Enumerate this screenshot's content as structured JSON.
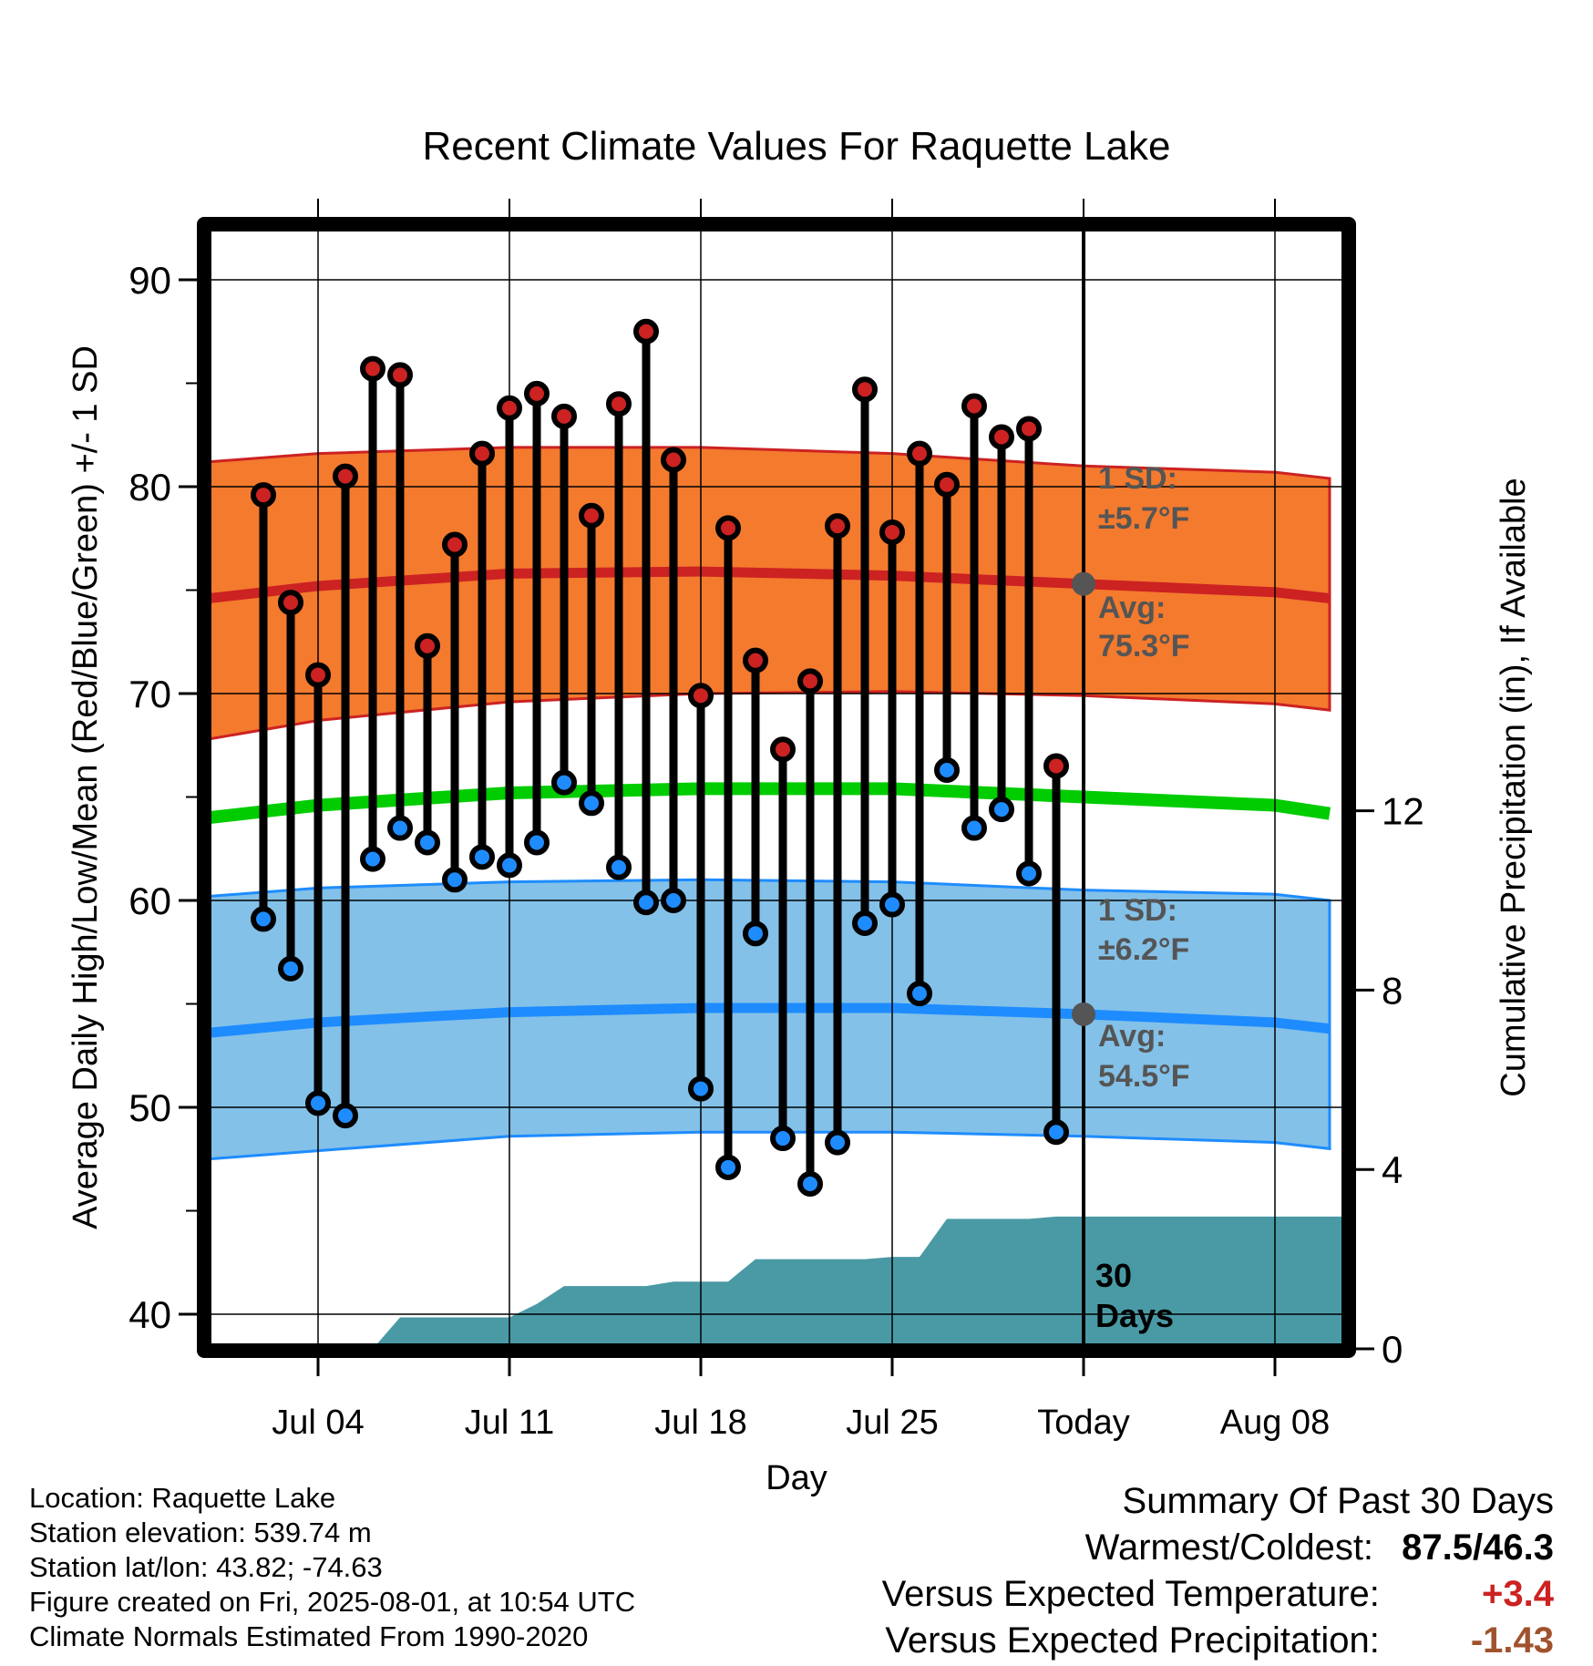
{
  "chart_data": {
    "type": "line",
    "title": "Recent Climate Values For Raquette Lake",
    "xlabel": "Day",
    "ylabel": "Average Daily High/Low/Mean (Red/Blue/Green) +/- 1 SD",
    "ylabel_right": "Cumulative Precipitation (in), If Available",
    "x_tick_labels": [
      "Jul 04",
      "Jul 11",
      "Jul 18",
      "Jul 25",
      "Today",
      "Aug 08"
    ],
    "x_tick_days": [
      "2025-07-04",
      "2025-07-11",
      "2025-07-18",
      "2025-07-25",
      "2025-08-01",
      "2025-08-08"
    ],
    "xlim": [
      "2025-06-30",
      "2025-08-10"
    ],
    "ylim": [
      39,
      92
    ],
    "y_ticks": [
      40,
      50,
      60,
      70,
      80,
      90
    ],
    "y2lim": [
      0,
      18
    ],
    "y2_ticks": [
      0,
      4,
      8,
      12
    ],
    "grid": true,
    "colors": {
      "high": "#cc2222",
      "high_band": "#f47a2e",
      "low": "#1e8cff",
      "low_band": "#83c1e8",
      "mean": "#00cc00",
      "precip": "#4a9aa5",
      "marker_edge": "#000000"
    },
    "observed": {
      "dates": [
        "2025-07-02",
        "2025-07-03",
        "2025-07-04",
        "2025-07-05",
        "2025-07-06",
        "2025-07-07",
        "2025-07-08",
        "2025-07-09",
        "2025-07-10",
        "2025-07-11",
        "2025-07-12",
        "2025-07-13",
        "2025-07-14",
        "2025-07-15",
        "2025-07-16",
        "2025-07-17",
        "2025-07-18",
        "2025-07-19",
        "2025-07-20",
        "2025-07-21",
        "2025-07-22",
        "2025-07-23",
        "2025-07-24",
        "2025-07-25",
        "2025-07-26",
        "2025-07-27",
        "2025-07-28",
        "2025-07-29",
        "2025-07-30",
        "2025-07-31"
      ],
      "high": [
        79.6,
        74.4,
        70.9,
        80.5,
        85.7,
        85.4,
        72.3,
        77.2,
        81.6,
        83.8,
        84.5,
        83.4,
        78.6,
        84.0,
        87.5,
        81.3,
        69.9,
        78.0,
        71.6,
        67.3,
        70.6,
        78.1,
        84.7,
        77.8,
        81.6,
        80.1,
        83.9,
        82.4,
        82.8,
        66.5
      ],
      "low": [
        59.1,
        56.7,
        50.2,
        49.6,
        62.0,
        63.5,
        62.8,
        61.0,
        62.1,
        61.7,
        62.8,
        65.7,
        64.7,
        61.6,
        59.9,
        60.0,
        50.9,
        47.1,
        58.4,
        48.5,
        46.3,
        48.3,
        58.9,
        59.8,
        55.5,
        66.3,
        63.5,
        64.4,
        61.3,
        48.8
      ]
    },
    "normals": {
      "dates": [
        "2025-06-30",
        "2025-07-04",
        "2025-07-11",
        "2025-07-18",
        "2025-07-25",
        "2025-08-01",
        "2025-08-08",
        "2025-08-10"
      ],
      "high_avg": [
        74.6,
        75.2,
        75.8,
        75.9,
        75.7,
        75.3,
        74.9,
        74.6
      ],
      "high_upper": [
        81.2,
        81.6,
        81.9,
        81.9,
        81.6,
        81.0,
        80.7,
        80.4
      ],
      "high_lower": [
        67.8,
        68.7,
        69.6,
        70.0,
        70.1,
        69.9,
        69.5,
        69.2
      ],
      "mean": [
        64.0,
        64.6,
        65.2,
        65.4,
        65.4,
        65.0,
        64.6,
        64.2
      ],
      "low_avg": [
        53.6,
        54.1,
        54.6,
        54.8,
        54.8,
        54.5,
        54.1,
        53.8
      ],
      "low_upper": [
        60.2,
        60.6,
        60.9,
        61.0,
        60.9,
        60.5,
        60.3,
        60.0
      ],
      "low_lower": [
        47.5,
        47.9,
        48.6,
        48.8,
        48.8,
        48.6,
        48.3,
        48.0
      ]
    },
    "precip_cumulative": {
      "dates": [
        "2025-07-06",
        "2025-07-07",
        "2025-07-08",
        "2025-07-09",
        "2025-07-10",
        "2025-07-11",
        "2025-07-12",
        "2025-07-13",
        "2025-07-14",
        "2025-07-15",
        "2025-07-16",
        "2025-07-17",
        "2025-07-18",
        "2025-07-19",
        "2025-07-20",
        "2025-07-21",
        "2025-07-22",
        "2025-07-23",
        "2025-07-24",
        "2025-07-25",
        "2025-07-26",
        "2025-07-27",
        "2025-07-28",
        "2025-07-29",
        "2025-07-30",
        "2025-07-31",
        "2025-08-01",
        "2025-08-10"
      ],
      "values": [
        0.0,
        0.7,
        0.7,
        0.7,
        0.7,
        0.7,
        1.0,
        1.4,
        1.4,
        1.4,
        1.4,
        1.5,
        1.5,
        1.5,
        2.0,
        2.0,
        2.0,
        2.0,
        2.0,
        2.05,
        2.05,
        2.9,
        2.9,
        2.9,
        2.9,
        2.95,
        2.95,
        2.95
      ]
    },
    "annotations": {
      "high_sd_label": "1 SD:",
      "high_sd_value": "±5.7°F",
      "high_avg_label": "Avg:",
      "high_avg_value": "75.3°F",
      "low_sd_label": "1 SD:",
      "low_sd_value": "±6.2°F",
      "low_avg_label": "Avg:",
      "low_avg_value": "54.5°F",
      "days_label_1": "30",
      "days_label_2": "Days",
      "today_high_avg": 75.3,
      "today_low_avg": 54.5
    }
  },
  "footer": {
    "location": "Location: Raquette Lake",
    "elevation": "Station elevation: 539.74 m",
    "latlon": "Station lat/lon: 43.82; -74.63",
    "created": "Figure created on Fri, 2025-08-01, at 10:54 UTC",
    "normals": "Climate Normals Estimated From 1990-2020"
  },
  "summary": {
    "title": "Summary Of Past 30 Days",
    "warm_cold_label": "Warmest/Coldest:",
    "warm_cold_value": "87.5/46.3",
    "temp_label": "Versus Expected Temperature:",
    "temp_value": "+3.4",
    "temp_color": "#cc2222",
    "precip_label": "Versus Expected Precipitation:",
    "precip_value": "-1.43",
    "precip_color": "#a0522d"
  }
}
